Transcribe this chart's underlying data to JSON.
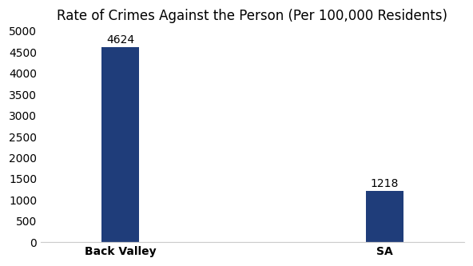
{
  "categories": [
    "Back Valley",
    "SA"
  ],
  "values": [
    4624,
    1218
  ],
  "bar_colors": [
    "#1f3d7a",
    "#1f3d7a"
  ],
  "title": "Rate of Crimes Against the Person (Per 100,000 Residents)",
  "title_fontsize": 12,
  "ylim": [
    0,
    5000
  ],
  "yticks": [
    0,
    500,
    1000,
    1500,
    2000,
    2500,
    3000,
    3500,
    4000,
    4500,
    5000
  ],
  "bar_width": 0.28,
  "tick_fontsize": 10,
  "background_color": "#ffffff",
  "annotation_fontsize": 10,
  "x_positions": [
    1,
    3
  ],
  "xlim": [
    0.4,
    3.6
  ]
}
